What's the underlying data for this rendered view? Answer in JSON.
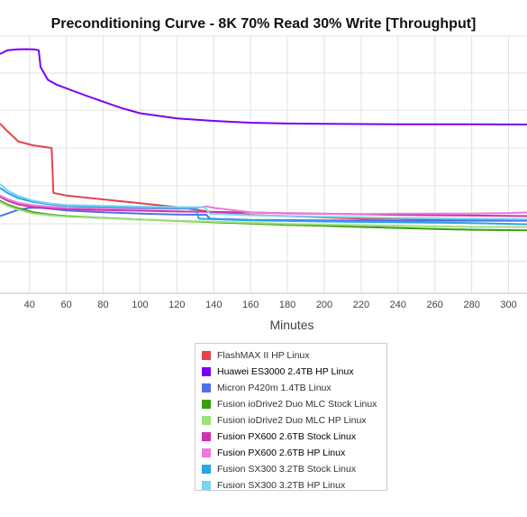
{
  "chart_data": {
    "type": "line",
    "title": "Preconditioning Curve - 8K 70% Read 30% Write [Throughput]",
    "xlabel": "Minutes",
    "ylabel": "",
    "x_ticks": [
      40,
      60,
      80,
      100,
      120,
      140,
      160,
      180,
      200,
      220,
      240,
      260,
      280,
      300
    ],
    "xlim": [
      24,
      310
    ],
    "grid": true,
    "legend_position": "bottom-center",
    "series": [
      {
        "name": "FlashMAX II HP Linux",
        "color": "#e8424d",
        "bold_label": false,
        "points": [
          [
            24,
            0.66
          ],
          [
            28,
            0.63
          ],
          [
            34,
            0.59
          ],
          [
            42,
            0.575
          ],
          [
            52,
            0.565
          ],
          [
            53,
            0.39
          ],
          [
            60,
            0.38
          ],
          [
            80,
            0.365
          ],
          [
            100,
            0.35
          ],
          [
            120,
            0.335
          ],
          [
            140,
            0.315
          ],
          [
            160,
            0.305
          ],
          [
            180,
            0.3
          ],
          [
            200,
            0.295
          ],
          [
            220,
            0.29
          ],
          [
            240,
            0.29
          ],
          [
            260,
            0.285
          ],
          [
            280,
            0.285
          ],
          [
            310,
            0.285
          ]
        ]
      },
      {
        "name": "Huawei ES3000 2.4TB HP Linux",
        "color": "#7a00f5",
        "bold_label": true,
        "points": [
          [
            24,
            0.93
          ],
          [
            28,
            0.945
          ],
          [
            33,
            0.948
          ],
          [
            38,
            0.949
          ],
          [
            43,
            0.948
          ],
          [
            45,
            0.945
          ],
          [
            46,
            0.88
          ],
          [
            50,
            0.83
          ],
          [
            55,
            0.81
          ],
          [
            70,
            0.77
          ],
          [
            80,
            0.745
          ],
          [
            90,
            0.72
          ],
          [
            100,
            0.7
          ],
          [
            110,
            0.69
          ],
          [
            120,
            0.68
          ],
          [
            140,
            0.67
          ],
          [
            160,
            0.663
          ],
          [
            180,
            0.66
          ],
          [
            200,
            0.659
          ],
          [
            220,
            0.658
          ],
          [
            240,
            0.657
          ],
          [
            260,
            0.657
          ],
          [
            280,
            0.657
          ],
          [
            310,
            0.656
          ]
        ]
      },
      {
        "name": "Micron P420m 1.4TB Linux",
        "color": "#4f6fe8",
        "bold_label": false,
        "points": [
          [
            24,
            0.3
          ],
          [
            28,
            0.31
          ],
          [
            34,
            0.325
          ],
          [
            40,
            0.332
          ],
          [
            46,
            0.332
          ],
          [
            52,
            0.328
          ],
          [
            60,
            0.322
          ],
          [
            80,
            0.315
          ],
          [
            100,
            0.31
          ],
          [
            120,
            0.306
          ],
          [
            136,
            0.305
          ],
          [
            138,
            0.29
          ],
          [
            160,
            0.285
          ],
          [
            200,
            0.283
          ],
          [
            240,
            0.282
          ],
          [
            280,
            0.282
          ],
          [
            310,
            0.282
          ]
        ]
      },
      {
        "name": "Fusion ioDrive2 Duo MLC Stock Linux",
        "color": "#3c9c10",
        "bold_label": false,
        "points": [
          [
            24,
            0.36
          ],
          [
            28,
            0.345
          ],
          [
            34,
            0.33
          ],
          [
            42,
            0.315
          ],
          [
            52,
            0.305
          ],
          [
            60,
            0.3
          ],
          [
            80,
            0.293
          ],
          [
            100,
            0.287
          ],
          [
            120,
            0.281
          ],
          [
            140,
            0.276
          ],
          [
            160,
            0.271
          ],
          [
            180,
            0.266
          ],
          [
            200,
            0.262
          ],
          [
            220,
            0.258
          ],
          [
            240,
            0.254
          ],
          [
            260,
            0.25
          ],
          [
            280,
            0.247
          ],
          [
            310,
            0.245
          ]
        ]
      },
      {
        "name": "Fusion ioDrive2 Duo MLC HP Linux",
        "color": "#9fe07a",
        "bold_label": false,
        "points": [
          [
            24,
            0.355
          ],
          [
            28,
            0.34
          ],
          [
            34,
            0.325
          ],
          [
            42,
            0.31
          ],
          [
            52,
            0.302
          ],
          [
            60,
            0.298
          ],
          [
            80,
            0.292
          ],
          [
            100,
            0.287
          ],
          [
            120,
            0.282
          ],
          [
            140,
            0.278
          ],
          [
            160,
            0.274
          ],
          [
            180,
            0.27
          ],
          [
            200,
            0.267
          ],
          [
            220,
            0.264
          ],
          [
            240,
            0.262
          ],
          [
            260,
            0.26
          ],
          [
            280,
            0.258
          ],
          [
            310,
            0.257
          ]
        ]
      },
      {
        "name": "Fusion PX600 2.6TB Stock Linux",
        "color": "#cc33aa",
        "bold_label": true,
        "points": [
          [
            24,
            0.375
          ],
          [
            28,
            0.36
          ],
          [
            34,
            0.345
          ],
          [
            42,
            0.335
          ],
          [
            52,
            0.33
          ],
          [
            60,
            0.327
          ],
          [
            80,
            0.324
          ],
          [
            100,
            0.321
          ],
          [
            120,
            0.318
          ],
          [
            140,
            0.316
          ],
          [
            160,
            0.314
          ],
          [
            180,
            0.311
          ],
          [
            200,
            0.309
          ],
          [
            220,
            0.307
          ],
          [
            240,
            0.305
          ],
          [
            260,
            0.303
          ],
          [
            280,
            0.302
          ],
          [
            310,
            0.3
          ]
        ]
      },
      {
        "name": "Fusion PX600 2.6TB HP Linux",
        "color": "#ee77dd",
        "bold_label": true,
        "points": [
          [
            24,
            0.38
          ],
          [
            28,
            0.366
          ],
          [
            34,
            0.352
          ],
          [
            42,
            0.342
          ],
          [
            52,
            0.336
          ],
          [
            60,
            0.333
          ],
          [
            80,
            0.331
          ],
          [
            100,
            0.329
          ],
          [
            120,
            0.328
          ],
          [
            130,
            0.33
          ],
          [
            136,
            0.338
          ],
          [
            140,
            0.332
          ],
          [
            160,
            0.315
          ],
          [
            180,
            0.31
          ],
          [
            200,
            0.309
          ],
          [
            220,
            0.308
          ],
          [
            240,
            0.309
          ],
          [
            260,
            0.31
          ],
          [
            280,
            0.31
          ],
          [
            300,
            0.312
          ],
          [
            310,
            0.314
          ]
        ]
      },
      {
        "name": "Fusion SX300 3.2TB Stock Linux",
        "color": "#2aa5e8",
        "bold_label": false,
        "points": [
          [
            24,
            0.41
          ],
          [
            28,
            0.39
          ],
          [
            34,
            0.37
          ],
          [
            42,
            0.355
          ],
          [
            52,
            0.345
          ],
          [
            60,
            0.34
          ],
          [
            80,
            0.336
          ],
          [
            100,
            0.333
          ],
          [
            120,
            0.331
          ],
          [
            130,
            0.33
          ],
          [
            132,
            0.29
          ],
          [
            160,
            0.283
          ],
          [
            200,
            0.279
          ],
          [
            240,
            0.276
          ],
          [
            280,
            0.273
          ],
          [
            300,
            0.27
          ],
          [
            310,
            0.268
          ]
        ]
      },
      {
        "name": "Fusion SX300 3.2TB HP Linux",
        "color": "#74d6f5",
        "bold_label": false,
        "points": [
          [
            24,
            0.425
          ],
          [
            28,
            0.4
          ],
          [
            34,
            0.378
          ],
          [
            42,
            0.36
          ],
          [
            52,
            0.348
          ],
          [
            60,
            0.343
          ],
          [
            80,
            0.34
          ],
          [
            100,
            0.337
          ],
          [
            120,
            0.335
          ],
          [
            135,
            0.334
          ],
          [
            138,
            0.31
          ],
          [
            160,
            0.303
          ],
          [
            200,
            0.298
          ],
          [
            240,
            0.293
          ],
          [
            280,
            0.29
          ],
          [
            310,
            0.288
          ]
        ]
      }
    ]
  }
}
